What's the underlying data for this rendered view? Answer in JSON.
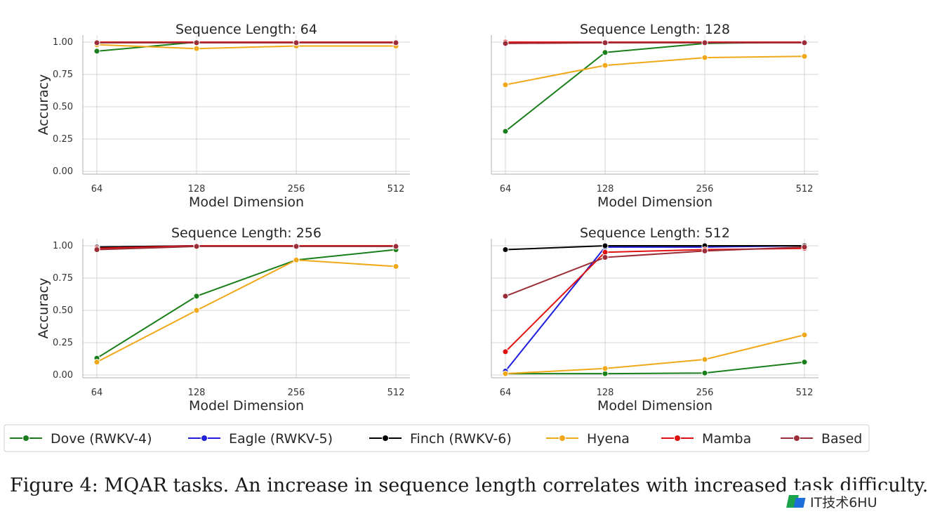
{
  "chart_data": [
    {
      "type": "line",
      "title": "Sequence Length: 64",
      "xlabel": "Model Dimension",
      "ylabel": "Accuracy",
      "categories": [
        "64",
        "128",
        "256",
        "512"
      ],
      "yticks": [
        "0.00",
        "0.25",
        "0.50",
        "0.75",
        "1.00"
      ],
      "ylim": [
        0,
        1
      ],
      "grid": true,
      "series": [
        {
          "name": "Dove (RWKV-4)",
          "values": [
            0.93,
            1.0,
            1.0,
            1.0
          ]
        },
        {
          "name": "Eagle (RWKV-5)",
          "values": [
            1.0,
            1.0,
            1.0,
            1.0
          ]
        },
        {
          "name": "Finch (RWKV-6)",
          "values": [
            1.0,
            1.0,
            1.0,
            1.0
          ]
        },
        {
          "name": "Hyena",
          "values": [
            0.98,
            0.95,
            0.97,
            0.97
          ]
        },
        {
          "name": "Mamba",
          "values": [
            1.0,
            1.0,
            1.0,
            1.0
          ]
        },
        {
          "name": "Based",
          "values": [
            0.995,
            0.995,
            0.995,
            0.995
          ]
        }
      ]
    },
    {
      "type": "line",
      "title": "Sequence Length: 128",
      "xlabel": "Model Dimension",
      "ylabel": "",
      "categories": [
        "64",
        "128",
        "256",
        "512"
      ],
      "yticks": [],
      "ylim": [
        0,
        1
      ],
      "grid": true,
      "series": [
        {
          "name": "Dove (RWKV-4)",
          "values": [
            0.31,
            0.92,
            0.99,
            1.0
          ]
        },
        {
          "name": "Eagle (RWKV-5)",
          "values": [
            1.0,
            1.0,
            1.0,
            1.0
          ]
        },
        {
          "name": "Finch (RWKV-6)",
          "values": [
            1.0,
            1.0,
            1.0,
            1.0
          ]
        },
        {
          "name": "Hyena",
          "values": [
            0.67,
            0.82,
            0.88,
            0.89
          ]
        },
        {
          "name": "Mamba",
          "values": [
            1.0,
            1.0,
            1.0,
            1.0
          ]
        },
        {
          "name": "Based",
          "values": [
            0.99,
            0.995,
            0.995,
            0.995
          ]
        }
      ]
    },
    {
      "type": "line",
      "title": "Sequence Length: 256",
      "xlabel": "Model Dimension",
      "ylabel": "Accuracy",
      "categories": [
        "64",
        "128",
        "256",
        "512"
      ],
      "yticks": [
        "0.00",
        "0.25",
        "0.50",
        "0.75",
        "1.00"
      ],
      "ylim": [
        0,
        1
      ],
      "grid": true,
      "series": [
        {
          "name": "Dove (RWKV-4)",
          "values": [
            0.13,
            0.61,
            0.89,
            0.97
          ]
        },
        {
          "name": "Eagle (RWKV-5)",
          "values": [
            0.99,
            1.0,
            1.0,
            1.0
          ]
        },
        {
          "name": "Finch (RWKV-6)",
          "values": [
            0.99,
            1.0,
            1.0,
            1.0
          ]
        },
        {
          "name": "Hyena",
          "values": [
            0.1,
            0.5,
            0.89,
            0.84
          ]
        },
        {
          "name": "Mamba",
          "values": [
            0.98,
            1.0,
            1.0,
            1.0
          ]
        },
        {
          "name": "Based",
          "values": [
            0.97,
            0.995,
            0.995,
            0.995
          ]
        }
      ]
    },
    {
      "type": "line",
      "title": "Sequence Length: 512",
      "xlabel": "Model Dimension",
      "ylabel": "",
      "categories": [
        "64",
        "128",
        "256",
        "512"
      ],
      "yticks": [],
      "ylim": [
        0,
        1
      ],
      "grid": true,
      "series": [
        {
          "name": "Dove (RWKV-4)",
          "values": [
            0.01,
            0.01,
            0.015,
            0.1
          ]
        },
        {
          "name": "Eagle (RWKV-5)",
          "values": [
            0.03,
            0.99,
            0.99,
            1.0
          ]
        },
        {
          "name": "Finch (RWKV-6)",
          "values": [
            0.97,
            1.0,
            1.0,
            1.0
          ]
        },
        {
          "name": "Hyena",
          "values": [
            0.01,
            0.05,
            0.12,
            0.31
          ]
        },
        {
          "name": "Mamba",
          "values": [
            0.18,
            0.95,
            0.97,
            0.98
          ]
        },
        {
          "name": "Based",
          "values": [
            0.61,
            0.91,
            0.96,
            0.99
          ]
        }
      ]
    }
  ],
  "legend": {
    "placement": "bottom",
    "items": [
      {
        "name": "Dove (RWKV-4)",
        "color": "#1a7f1a"
      },
      {
        "name": "Eagle (RWKV-5)",
        "color": "#1f1fdc"
      },
      {
        "name": "Finch (RWKV-6)",
        "color": "#000000"
      },
      {
        "name": "Hyena",
        "color": "#f0a818"
      },
      {
        "name": "Mamba",
        "color": "#e01010"
      },
      {
        "name": "Based",
        "color": "#9b2d38"
      }
    ]
  },
  "caption": "Figure 4: MQAR tasks. An increase in sequence length correlates with increased task difficulty.",
  "watermark": {
    "text": "IT技术6HU",
    "icon": "brand-logo-icon"
  }
}
